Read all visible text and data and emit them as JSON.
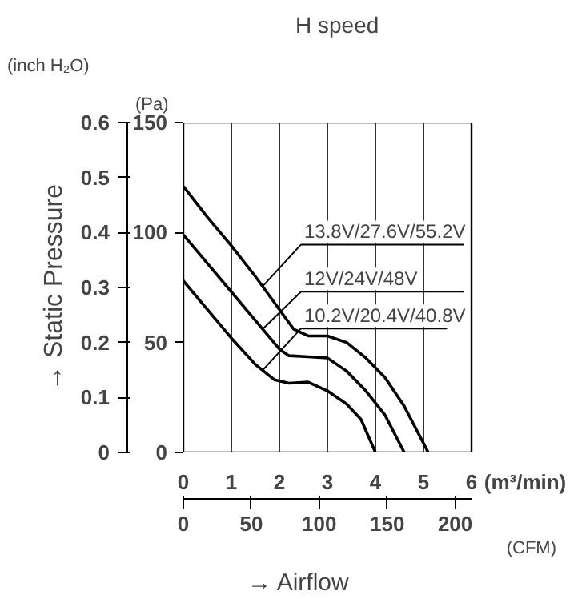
{
  "chart_data": {
    "type": "line",
    "title": "H speed",
    "xlabel": "→ Airflow",
    "ylabel": "→ Static Pressure",
    "xlim": [
      0,
      6
    ],
    "xticks": [
      0,
      1,
      2,
      3,
      4,
      5,
      6
    ],
    "ylim": [
      0,
      0.6
    ],
    "yticks": [
      0,
      0.1,
      0.2,
      0.3,
      0.4,
      0.5,
      0.6
    ],
    "y2lim": [
      0,
      150
    ],
    "y2ticks": [
      0,
      50,
      100,
      150
    ],
    "x2lim": [
      0,
      212
    ],
    "x2ticks": [
      0,
      50,
      100,
      150,
      200
    ],
    "grid": true,
    "annotations": [
      "(inch H₂O)",
      "(Pa)",
      "(m³/min)",
      "(CFM)"
    ],
    "series": [
      {
        "name": "13.8V/27.6V/55.2V",
        "axis": "y2",
        "color": "#000000",
        "x": [
          0,
          0.5,
          1,
          1.5,
          2,
          2.3,
          2.6,
          3.0,
          3.4,
          3.8,
          4.2,
          4.6,
          5.1
        ],
        "values": [
          121,
          107,
          94,
          80,
          65,
          56,
          53,
          53,
          50,
          43,
          34,
          21,
          0
        ]
      },
      {
        "name": "12V/24V/48V",
        "axis": "y2",
        "color": "#000000",
        "x": [
          0,
          0.5,
          1,
          1.5,
          2,
          2.2,
          2.6,
          3.0,
          3.4,
          3.8,
          4.2,
          4.6
        ],
        "values": [
          99,
          86,
          73,
          60,
          47,
          44,
          43.5,
          43,
          37,
          28,
          17,
          0
        ]
      },
      {
        "name": "10.2V/20.4V/40.8V",
        "axis": "y2",
        "color": "#000000",
        "x": [
          0,
          0.5,
          1,
          1.5,
          1.9,
          2.2,
          2.6,
          3.0,
          3.4,
          3.7,
          4.0
        ],
        "values": [
          78,
          65,
          52,
          40,
          33,
          31.5,
          32,
          28,
          22,
          15,
          0
        ]
      }
    ]
  }
}
